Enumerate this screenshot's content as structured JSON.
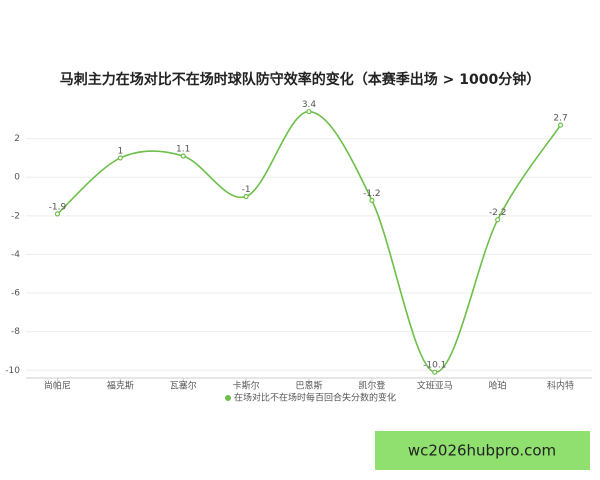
{
  "chart_data": {
    "type": "line",
    "title": "马刺主力在场对比不在场时球队防守效率的变化（本赛季出场 > 1000分钟）",
    "categories": [
      "尚帕尼",
      "福克斯",
      "瓦塞尔",
      "卡斯尔",
      "巴恩斯",
      "凯尔登",
      "文班亚马",
      "哈珀",
      "科内特"
    ],
    "series": [
      {
        "name": "在场对比不在场时每百回合失分数的变化",
        "color": "#6cbf48",
        "values": [
          -1.9,
          1,
          1.1,
          -1,
          3.4,
          -1.2,
          -10.1,
          -2.2,
          2.7
        ]
      }
    ],
    "ylim": [
      -10.4,
      4
    ],
    "yticks": [
      -10,
      -8,
      -6,
      -4,
      -2,
      0,
      2
    ],
    "grid": true,
    "legend": "bottom"
  },
  "watermark": "wc2026hubpro.com"
}
